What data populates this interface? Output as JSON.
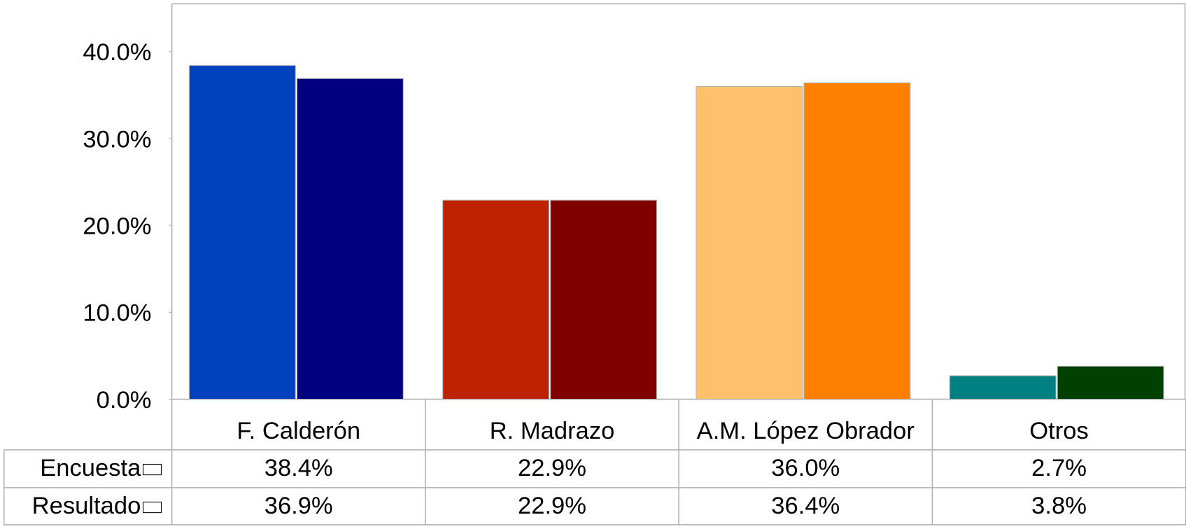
{
  "chart_data": {
    "type": "bar",
    "categories": [
      "F. Calderón",
      "R. Madrazo",
      "A.M. López Obrador",
      "Otros"
    ],
    "series": [
      {
        "name": "Encuesta",
        "colors": [
          "#0041c0",
          "#bf2200",
          "#ffc06c",
          "#008080"
        ],
        "values": [
          38.4,
          22.9,
          36.0,
          2.7
        ],
        "value_labels": [
          "38.4%",
          "22.9%",
          "36.0%",
          "2.7%"
        ]
      },
      {
        "name": "Resultado",
        "colors": [
          "#000080",
          "#800000",
          "#ff8000",
          "#004000"
        ],
        "values": [
          36.9,
          22.9,
          36.4,
          3.8
        ],
        "value_labels": [
          "36.9%",
          "22.9%",
          "36.4%",
          "3.8%"
        ]
      }
    ],
    "ylim": [
      0,
      45.5
    ],
    "yticks": [
      {
        "value": 0,
        "label": "0.0%"
      },
      {
        "value": 10,
        "label": "10.0%"
      },
      {
        "value": 20,
        "label": "20.0%"
      },
      {
        "value": 30,
        "label": "30.0%"
      },
      {
        "value": 40,
        "label": "40.0%"
      }
    ],
    "grid": false
  }
}
